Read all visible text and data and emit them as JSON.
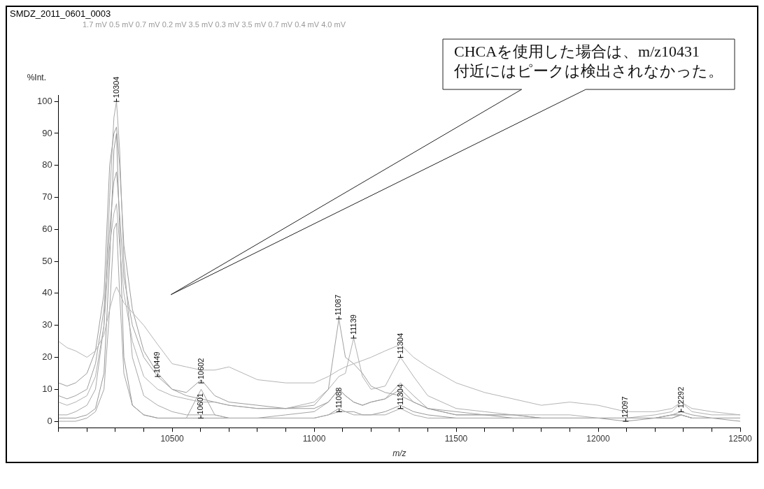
{
  "chart_data": {
    "type": "line",
    "title": "SMDZ_2011_0601_0003",
    "subtitle": "1.7 mV 0.5 mV 0.7 mV 0.2 mV 3.5 mV 0.3 mV 3.5 mV 0.7 mV 0.4 mV 4.0 mV",
    "xlabel": "m/z",
    "ylabel": "%Int.",
    "x": [
      10100,
      10130,
      10160,
      10200,
      10230,
      10260,
      10280,
      10295,
      10304,
      10315,
      10330,
      10360,
      10400,
      10449,
      10500,
      10550,
      10602,
      10650,
      10700,
      10800,
      10900,
      11000,
      11050,
      11087,
      11110,
      11139,
      11170,
      11200,
      11250,
      11304,
      11350,
      11400,
      11500,
      11600,
      11700,
      11800,
      11900,
      12000,
      12097,
      12200,
      12260,
      12292,
      12330,
      12400,
      12500
    ],
    "series": [
      {
        "color": "#b4b4b4",
        "values": [
          25,
          23,
          22,
          20,
          22,
          27,
          35,
          40,
          42,
          40,
          37,
          34,
          30,
          24,
          18,
          17,
          16,
          16,
          17,
          13,
          12,
          12,
          14,
          16,
          17,
          18,
          19,
          20,
          22,
          24,
          20,
          17,
          12,
          9,
          7,
          5,
          6,
          5,
          3,
          3,
          4,
          6,
          4,
          3,
          2
        ]
      },
      {
        "color": "#a8a8a8",
        "values": [
          2,
          2,
          3,
          5,
          10,
          30,
          70,
          95,
          100,
          85,
          50,
          20,
          8,
          5,
          3,
          2,
          2,
          2,
          1,
          1,
          1,
          1,
          2,
          3,
          3,
          2,
          2,
          2,
          2,
          4,
          2,
          1,
          1,
          1,
          1,
          1,
          1,
          1,
          1,
          1,
          2,
          2,
          1,
          1,
          1
        ]
      },
      {
        "color": "#9c9c9c",
        "values": [
          12,
          11,
          12,
          15,
          22,
          40,
          80,
          90,
          92,
          80,
          55,
          35,
          22,
          15,
          10,
          9,
          13,
          8,
          6,
          5,
          4,
          4,
          6,
          10,
          8,
          6,
          5,
          6,
          7,
          10,
          6,
          4,
          2,
          2,
          1,
          1,
          1,
          1,
          1,
          1,
          2,
          3,
          2,
          1,
          1
        ]
      },
      {
        "color": "#a0a0a0",
        "values": [
          8,
          7,
          8,
          10,
          18,
          35,
          60,
          75,
          78,
          65,
          45,
          30,
          20,
          14,
          10,
          8,
          7,
          6,
          5,
          4,
          4,
          5,
          10,
          32,
          20,
          18,
          15,
          11,
          9,
          8,
          6,
          4,
          3,
          2,
          2,
          1,
          1,
          1,
          1,
          1,
          2,
          2,
          1,
          1,
          1
        ]
      },
      {
        "color": "#b0b0b0",
        "values": [
          6,
          5,
          6,
          8,
          14,
          30,
          55,
          65,
          68,
          55,
          40,
          25,
          14,
          10,
          8,
          7,
          6,
          6,
          5,
          4,
          4,
          6,
          10,
          14,
          15,
          26,
          14,
          10,
          11,
          20,
          14,
          8,
          4,
          3,
          2,
          2,
          2,
          1,
          1,
          2,
          3,
          6,
          3,
          2,
          2
        ]
      },
      {
        "color": "#989898",
        "values": [
          1,
          1,
          1,
          2,
          4,
          15,
          50,
          85,
          90,
          60,
          20,
          5,
          2,
          1,
          1,
          1,
          1,
          1,
          1,
          1,
          1,
          1,
          2,
          4,
          3,
          3,
          2,
          2,
          3,
          5,
          3,
          2,
          1,
          1,
          1,
          1,
          1,
          1,
          0,
          1,
          1,
          2,
          1,
          1,
          0
        ]
      },
      {
        "color": "#a4a4a4",
        "values": [
          0,
          0,
          0,
          1,
          3,
          10,
          35,
          60,
          62,
          40,
          15,
          5,
          2,
          1,
          1,
          1,
          10,
          2,
          1,
          1,
          2,
          3,
          6,
          10,
          8,
          6,
          5,
          6,
          7,
          12,
          8,
          4,
          2,
          2,
          2,
          1,
          1,
          1,
          1,
          1,
          1,
          2,
          1,
          1,
          1
        ]
      }
    ],
    "xlim": [
      10100,
      12500
    ],
    "xticks": [
      {
        "value": 10100,
        "label": null
      },
      {
        "value": 10200,
        "label": null
      },
      {
        "value": 10300,
        "label": null
      },
      {
        "value": 10400,
        "label": null
      },
      10500,
      {
        "value": 10600,
        "label": null
      },
      {
        "value": 10700,
        "label": null
      },
      {
        "value": 10800,
        "label": null
      },
      {
        "value": 10900,
        "label": null
      },
      11000,
      {
        "value": 11100,
        "label": null
      },
      {
        "value": 11200,
        "label": null
      },
      {
        "value": 11300,
        "label": null
      },
      {
        "value": 11400,
        "label": null
      },
      11500,
      {
        "value": 11600,
        "label": null
      },
      {
        "value": 11700,
        "label": null
      },
      {
        "value": 11800,
        "label": null
      },
      {
        "value": 11900,
        "label": null
      },
      12000,
      {
        "value": 12100,
        "label": null
      },
      {
        "value": 12200,
        "label": null
      },
      {
        "value": 12300,
        "label": null
      },
      {
        "value": 12400,
        "label": null
      },
      12500
    ],
    "ylim": [
      -2,
      102
    ],
    "yticks": [
      0,
      10,
      20,
      30,
      40,
      50,
      60,
      70,
      80,
      90,
      100
    ],
    "grid": false,
    "legend": false,
    "marker": "none",
    "line_style": "solid",
    "annotations": [
      "CHCAを使用した場合は、m/z10431\n付近にはピークは検出されなかった。",
      {
        "text": "10304",
        "x": 10304,
        "y": 100
      },
      {
        "text": "10449",
        "x": 10449,
        "y": 14
      },
      {
        "text": "10602",
        "x": 10602,
        "y": 12
      },
      {
        "text": "10601",
        "x": 10601,
        "y": 1
      },
      {
        "text": "11087",
        "x": 11087,
        "y": 32
      },
      {
        "text": "11088",
        "x": 11088,
        "y": 3
      },
      {
        "text": "11139",
        "x": 11139,
        "y": 26
      },
      {
        "text": "11304",
        "x": 11304,
        "y": 20
      },
      {
        "text": "11304",
        "x": 11304,
        "y": 4
      },
      {
        "text": "12097",
        "x": 12097,
        "y": 0
      },
      {
        "text": "12292",
        "x": 12292,
        "y": 3
      }
    ]
  }
}
